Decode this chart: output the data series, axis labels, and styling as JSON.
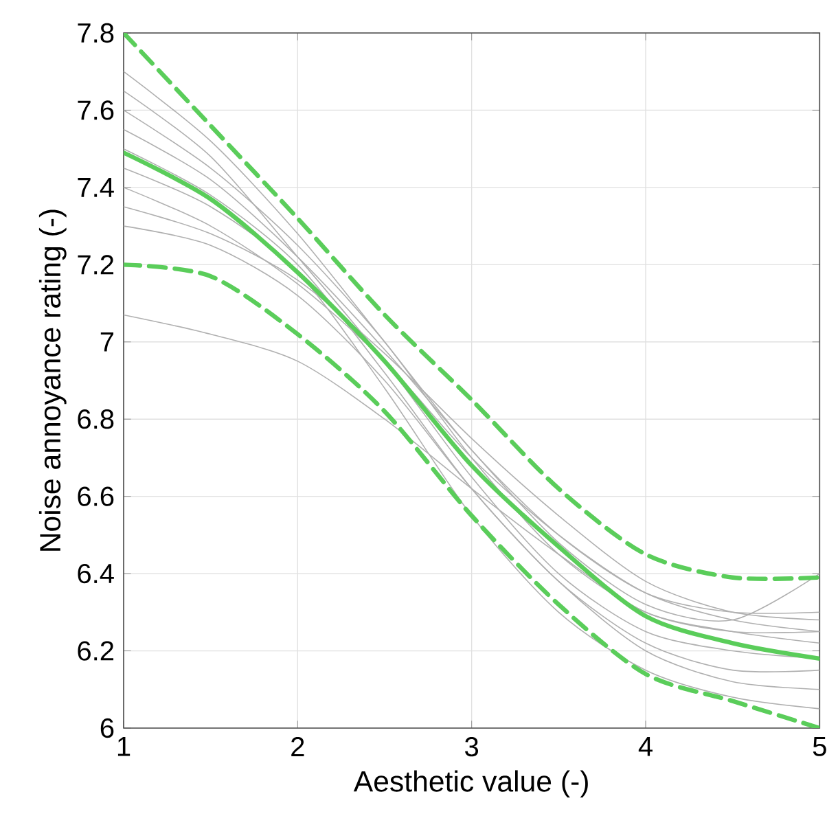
{
  "chart_data": {
    "type": "line",
    "xlabel": "Aesthetic value (-)",
    "ylabel": "Noise annoyance rating (-)",
    "x": [
      1,
      1.5,
      2,
      2.5,
      3,
      3.5,
      4,
      4.5,
      5
    ],
    "xlim": [
      1,
      5
    ],
    "ylim": [
      6,
      7.8
    ],
    "xticks": [
      1,
      2,
      3,
      4,
      5
    ],
    "yticks": [
      6,
      6.2,
      6.4,
      6.6,
      6.8,
      7,
      7.2,
      7.4,
      7.6,
      7.8
    ],
    "grid": true,
    "series": [
      {
        "color": "#b0b0b0",
        "values": [
          7.07,
          7.02,
          6.95,
          6.8,
          6.62,
          6.45,
          6.3,
          6.25,
          6.22
        ]
      },
      {
        "color": "#b0b0b0",
        "values": [
          7.6,
          7.45,
          7.25,
          7.0,
          6.7,
          6.45,
          6.3,
          6.25,
          6.25
        ]
      },
      {
        "color": "#b0b0b0",
        "values": [
          7.4,
          7.3,
          7.15,
          6.95,
          6.7,
          6.5,
          6.35,
          6.28,
          6.25
        ]
      },
      {
        "color": "#b0b0b0",
        "values": [
          7.5,
          7.38,
          7.2,
          6.92,
          6.62,
          6.38,
          6.2,
          6.12,
          6.1
        ]
      },
      {
        "color": "#b0b0b0",
        "values": [
          7.7,
          7.52,
          7.28,
          7.0,
          6.72,
          6.5,
          6.35,
          6.3,
          6.3
        ]
      },
      {
        "color": "#b0b0b0",
        "values": [
          7.3,
          7.25,
          7.12,
          6.9,
          6.62,
          6.38,
          6.22,
          6.15,
          6.15
        ]
      },
      {
        "color": "#b0b0b0",
        "values": [
          7.55,
          7.42,
          7.22,
          6.98,
          6.72,
          6.48,
          6.32,
          6.28,
          6.4
        ]
      },
      {
        "color": "#b0b0b0",
        "values": [
          7.45,
          7.35,
          7.18,
          6.88,
          6.55,
          6.3,
          6.15,
          6.08,
          6.05
        ]
      },
      {
        "color": "#b0b0b0",
        "values": [
          7.35,
          7.28,
          7.16,
          6.97,
          6.75,
          6.55,
          6.38,
          6.3,
          6.28
        ]
      },
      {
        "color": "#b0b0b0",
        "values": [
          7.65,
          7.48,
          7.22,
          6.95,
          6.65,
          6.4,
          6.25,
          6.2,
          6.18
        ]
      },
      {
        "color": "#5acd5a",
        "line_style": "dashed",
        "values": [
          7.8,
          7.56,
          7.32,
          7.07,
          6.85,
          6.62,
          6.45,
          6.39,
          6.39
        ]
      },
      {
        "color": "#5acd5a",
        "line_style": "dashed",
        "values": [
          7.2,
          7.17,
          7.02,
          6.82,
          6.55,
          6.32,
          6.14,
          6.07,
          6.0
        ]
      },
      {
        "color": "#5acd5a",
        "line_style": "solid",
        "values": [
          7.49,
          7.37,
          7.18,
          6.95,
          6.68,
          6.47,
          6.29,
          6.22,
          6.18
        ]
      }
    ]
  }
}
